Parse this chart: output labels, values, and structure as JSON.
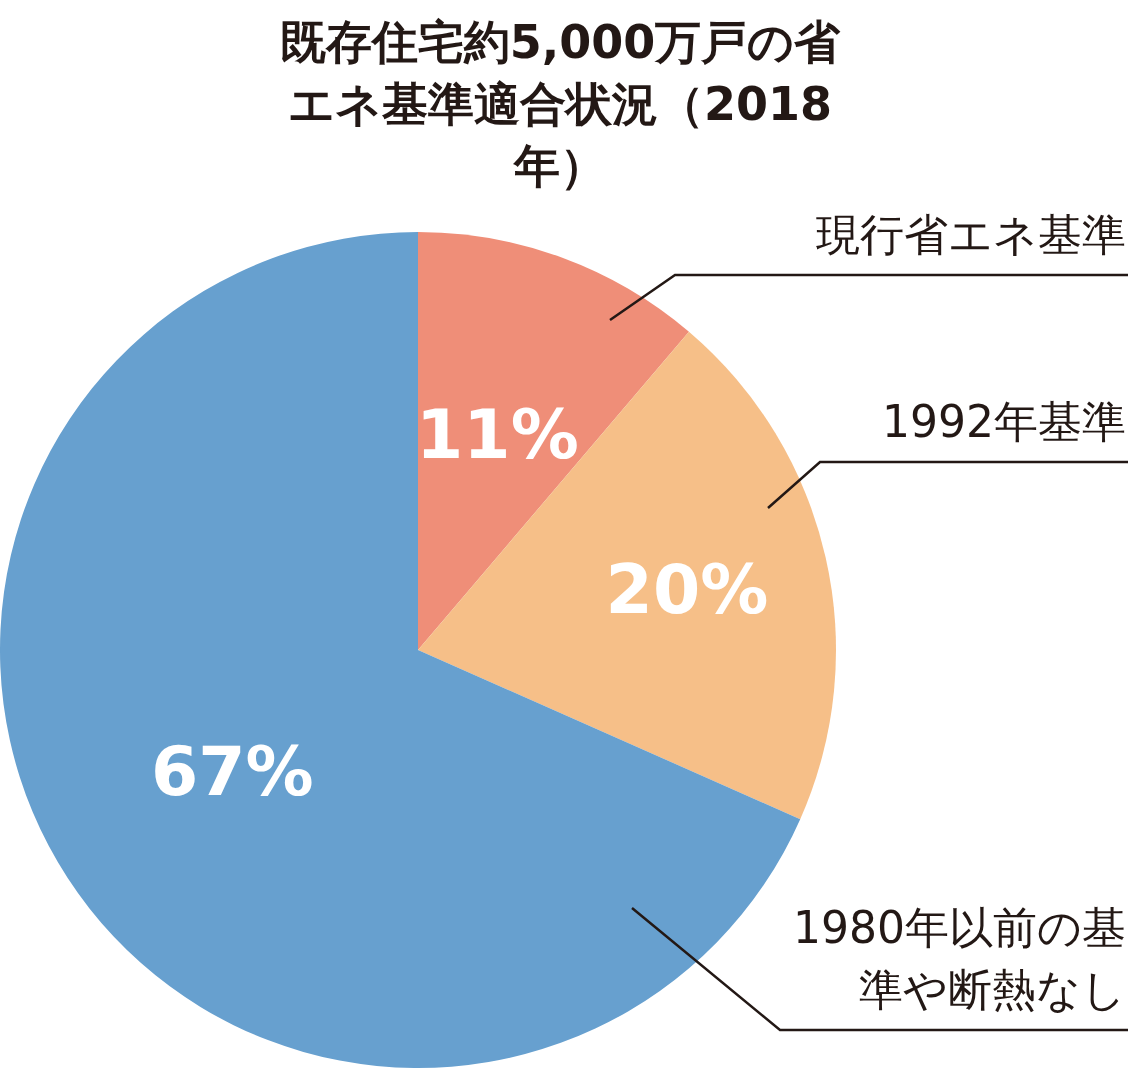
{
  "chart_data": {
    "type": "pie",
    "title": "既存住宅約5,000万戸の省エネ基準適合状況（2018年）",
    "categories": [
      "現行省エネ基準",
      "1992年基準",
      "1980年以前の基準や断熱なし"
    ],
    "values": [
      11,
      20,
      67
    ],
    "colors": [
      "#ef8e78",
      "#f6bf88",
      "#67a0cf"
    ],
    "value_labels": [
      "11%",
      "20%",
      "67%"
    ]
  }
}
